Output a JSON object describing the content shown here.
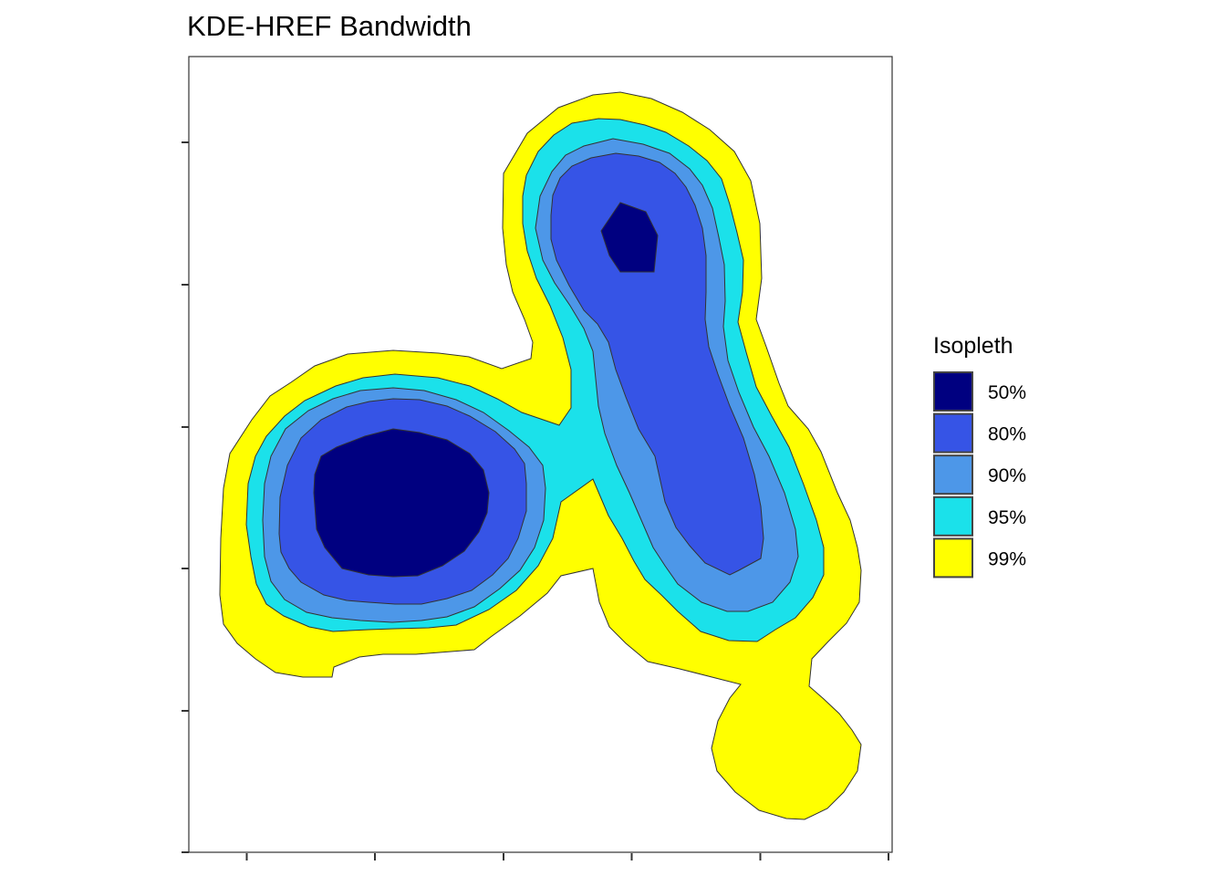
{
  "chart_data": {
    "type": "contour",
    "title": "KDE-HREF Bandwidth",
    "xlabel": "",
    "ylabel": "",
    "grid": false,
    "legend": {
      "title": "Isopleth",
      "placement": "right"
    },
    "isopleths": [
      {
        "label": "50%",
        "color": "#000080"
      },
      {
        "label": "80%",
        "color": "#3654E6"
      },
      {
        "label": "90%",
        "color": "#4D97E8"
      },
      {
        "label": "95%",
        "color": "#1BE1EA"
      },
      {
        "label": "99%",
        "color": "#FFFF00"
      }
    ]
  }
}
